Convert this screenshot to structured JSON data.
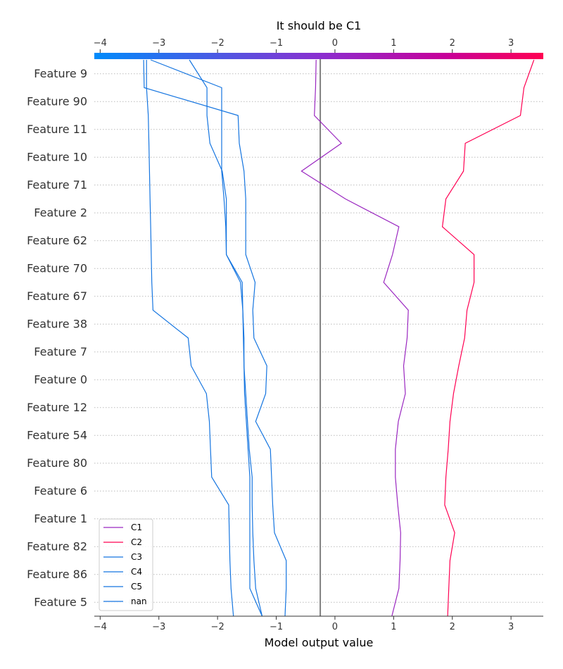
{
  "chart_data": {
    "type": "line",
    "title": "It should be C1",
    "xlabel": "Model output value",
    "ylabel": "",
    "xlim": [
      -4.1,
      3.55
    ],
    "xticks": [
      -4,
      -3,
      -2,
      -1,
      0,
      1,
      2,
      3
    ],
    "xtick_labels": [
      "−4",
      "−3",
      "−2",
      "−1",
      "0",
      "1",
      "2",
      "3"
    ],
    "colorbar": {
      "range": [
        -4.1,
        3.55
      ],
      "colors": [
        "#008bfb",
        "#ff0052"
      ]
    },
    "base_value": -0.25,
    "grid": "dotted horizontal per feature",
    "legend_position": "lower-left",
    "features": [
      "Feature 9",
      "Feature 90",
      "Feature 11",
      "Feature 10",
      "Feature 71",
      "Feature 2",
      "Feature 62",
      "Feature 70",
      "Feature 67",
      "Feature 38",
      "Feature 7",
      "Feature 0",
      "Feature 12",
      "Feature 54",
      "Feature 80",
      "Feature 6",
      "Feature 1",
      "Feature 82",
      "Feature 86",
      "Feature 5"
    ],
    "series": [
      {
        "name": "C1",
        "color": "#9a27c0",
        "values": [
          -0.32,
          -0.33,
          -0.35,
          0.11,
          -0.57,
          0.18,
          1.09,
          0.98,
          0.83,
          1.25,
          1.23,
          1.17,
          1.2,
          1.08,
          1.03,
          1.03,
          1.07,
          1.12,
          1.11,
          1.09,
          0.97
        ]
      },
      {
        "name": "C2",
        "color": "#ff0052",
        "values": [
          3.39,
          3.22,
          3.16,
          2.22,
          2.19,
          1.89,
          1.83,
          2.37,
          2.37,
          2.25,
          2.21,
          2.11,
          2.02,
          1.96,
          1.93,
          1.89,
          1.87,
          2.04,
          1.96,
          1.94,
          1.92
        ]
      },
      {
        "name": "C3",
        "color": "#1575e0",
        "values": [
          -2.48,
          -2.18,
          -2.18,
          -2.13,
          -1.92,
          -1.85,
          -1.85,
          -1.85,
          -1.58,
          -1.57,
          -1.56,
          -1.55,
          -1.52,
          -1.49,
          -1.46,
          -1.41,
          -1.41,
          -1.4,
          -1.38,
          -1.35,
          -1.24
        ]
      },
      {
        "name": "C4",
        "color": "#1575e0",
        "values": [
          -3.14,
          -1.93,
          -1.93,
          -1.93,
          -1.93,
          -1.89,
          -1.86,
          -1.85,
          -1.61,
          -1.57,
          -1.55,
          -1.55,
          -1.54,
          -1.51,
          -1.48,
          -1.45,
          -1.45,
          -1.45,
          -1.45,
          -1.45,
          -1.24
        ]
      },
      {
        "name": "C5",
        "color": "#1575e0",
        "values": [
          -3.21,
          -3.21,
          -3.18,
          -3.17,
          -3.16,
          -3.15,
          -3.14,
          -3.13,
          -3.12,
          -3.1,
          -2.5,
          -2.45,
          -2.19,
          -2.14,
          -2.12,
          -2.1,
          -1.81,
          -1.8,
          -1.79,
          -1.77,
          -1.73
        ]
      },
      {
        "name": "nan",
        "color": "#1575e0",
        "values": [
          -3.26,
          -3.25,
          -1.65,
          -1.63,
          -1.55,
          -1.52,
          -1.52,
          -1.52,
          -1.36,
          -1.4,
          -1.38,
          -1.16,
          -1.18,
          -1.35,
          -1.1,
          -1.08,
          -1.06,
          -1.03,
          -0.83,
          -0.83,
          -0.85
        ]
      }
    ]
  }
}
